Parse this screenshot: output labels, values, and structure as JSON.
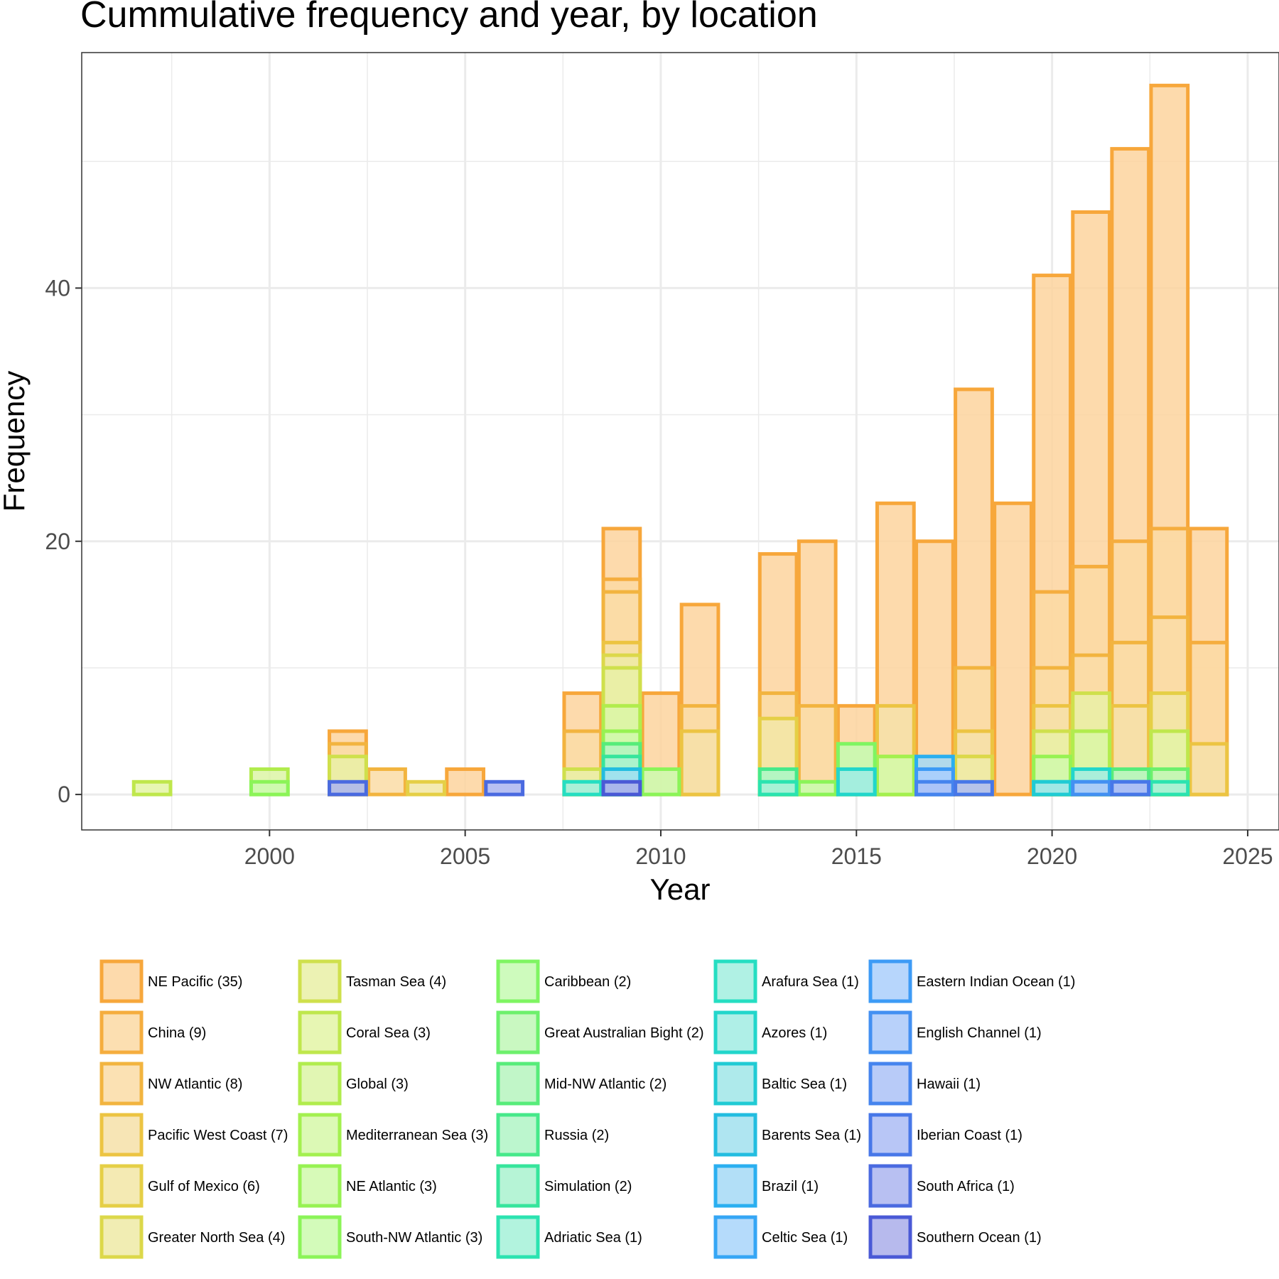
{
  "chart_data": {
    "type": "bar",
    "stacked": "overlapping",
    "title": "Cummulative frequency and year, by location",
    "xlabel": "Year",
    "ylabel": "Frequency",
    "xlim": [
      1995.2,
      2025.8
    ],
    "ylim": [
      -2.8,
      58.6
    ],
    "x_ticks": [
      2000,
      2005,
      2010,
      2015,
      2020,
      2025
    ],
    "y_ticks": [
      0,
      20,
      40
    ],
    "grid": true,
    "legend_position": "bottom",
    "series": [
      {
        "name": "NE Pacific (35)",
        "color": "#f7a73b",
        "fill": "#fdd49e",
        "points": [
          [
            2002,
            5
          ],
          [
            2005,
            2
          ],
          [
            2008,
            8
          ],
          [
            2009,
            21
          ],
          [
            2010,
            8
          ],
          [
            2011,
            15
          ],
          [
            2013,
            19
          ],
          [
            2014,
            20
          ],
          [
            2015,
            7
          ],
          [
            2016,
            23
          ],
          [
            2017,
            20
          ],
          [
            2018,
            32
          ],
          [
            2019,
            23
          ],
          [
            2020,
            41
          ],
          [
            2021,
            46
          ],
          [
            2022,
            51
          ],
          [
            2023,
            56
          ],
          [
            2024,
            21
          ]
        ]
      },
      {
        "name": "China (9)",
        "color": "#f5ad3e",
        "fill": "#fbd9a3",
        "points": [
          [
            2009,
            17
          ],
          [
            2020,
            16
          ],
          [
            2021,
            18
          ],
          [
            2022,
            20
          ],
          [
            2023,
            21
          ],
          [
            2024,
            12
          ]
        ]
      },
      {
        "name": "NW Atlantic (8)",
        "color": "#f2b43f",
        "fill": "#fadca6",
        "points": [
          [
            2002,
            4
          ],
          [
            2003,
            2
          ],
          [
            2008,
            5
          ],
          [
            2009,
            16
          ],
          [
            2011,
            7
          ],
          [
            2013,
            8
          ],
          [
            2014,
            7
          ],
          [
            2018,
            10
          ],
          [
            2020,
            10
          ],
          [
            2021,
            11
          ],
          [
            2022,
            12
          ],
          [
            2023,
            14
          ]
        ]
      },
      {
        "name": "Pacific West Coast (7)",
        "color": "#ecc442",
        "fill": "#f6e0a8",
        "points": [
          [
            2009,
            12
          ],
          [
            2011,
            5
          ],
          [
            2016,
            7
          ],
          [
            2018,
            5
          ],
          [
            2020,
            7
          ],
          [
            2022,
            7
          ],
          [
            2024,
            4
          ]
        ]
      },
      {
        "name": "Gulf of Mexico (6)",
        "color": "#e5cf46",
        "fill": "#f2e6a6",
        "points": [
          [
            2004,
            1
          ],
          [
            2013,
            6
          ],
          [
            2015,
            4
          ],
          [
            2018,
            3
          ],
          [
            2023,
            8
          ]
        ]
      },
      {
        "name": "Greater North Sea (4)",
        "color": "#dcd84a",
        "fill": "#eeeaa6",
        "points": [
          [
            2009,
            11
          ],
          [
            2014,
            1
          ],
          [
            2018,
            3
          ]
        ]
      },
      {
        "name": "Tasman Sea (4)",
        "color": "#cfe04c",
        "fill": "#e9f0a6",
        "points": [
          [
            2002,
            3
          ],
          [
            2008,
            2
          ],
          [
            2009,
            10
          ],
          [
            2016,
            3
          ],
          [
            2020,
            5
          ],
          [
            2021,
            8
          ]
        ]
      },
      {
        "name": "Coral Sea (3)",
        "color": "#bfe74c",
        "fill": "#e3f4a6",
        "points": [
          [
            1997,
            1
          ],
          [
            2009,
            7
          ],
          [
            2021,
            5
          ],
          [
            2023,
            5
          ]
        ]
      },
      {
        "name": "Global (3)",
        "color": "#b1ec4d",
        "fill": "#dcf5a6",
        "points": [
          [
            2000,
            2
          ],
          [
            2009,
            7
          ],
          [
            2021,
            5
          ]
        ]
      },
      {
        "name": "Mediterranean Sea (3)",
        "color": "#a3f04f",
        "fill": "#d6f8a8",
        "points": [
          [
            2008,
            1
          ],
          [
            2013,
            2
          ],
          [
            2016,
            3
          ]
        ]
      },
      {
        "name": "NE Atlantic (3)",
        "color": "#97f252",
        "fill": "#d0f9ab",
        "points": [
          [
            2009,
            5
          ],
          [
            2020,
            3
          ],
          [
            2022,
            2
          ]
        ]
      },
      {
        "name": "South-NW Atlantic (3)",
        "color": "#8bf458",
        "fill": "#cbfaae",
        "points": [
          [
            2000,
            1
          ],
          [
            2010,
            2
          ],
          [
            2014,
            1
          ]
        ]
      },
      {
        "name": "Caribbean (2)",
        "color": "#7ff562",
        "fill": "#c6fab2",
        "points": [
          [
            2013,
            2
          ],
          [
            2015,
            4
          ]
        ]
      },
      {
        "name": "Great Australian Bight (2)",
        "color": "#6df06c",
        "fill": "#bff7b6",
        "points": [
          [
            2009,
            4
          ],
          [
            2023,
            2
          ]
        ]
      },
      {
        "name": "Mid-NW Atlantic (2)",
        "color": "#57ec7a",
        "fill": "#b6f5be",
        "points": [
          [
            2009,
            4
          ],
          [
            2022,
            2
          ]
        ]
      },
      {
        "name": "Russia (2)",
        "color": "#46e98a",
        "fill": "#b0f4c6",
        "points": [
          [
            2013,
            2
          ],
          [
            2015,
            2
          ]
        ]
      },
      {
        "name": "Simulation (2)",
        "color": "#36e59c",
        "fill": "#a9f2cf",
        "points": [
          [
            2009,
            3
          ],
          [
            2022,
            1
          ]
        ]
      },
      {
        "name": "Adriatic Sea (1)",
        "color": "#2be3b0",
        "fill": "#a4f1d8",
        "points": [
          [
            2013,
            1
          ],
          [
            2023,
            1
          ]
        ]
      },
      {
        "name": "Arafura Sea (1)",
        "color": "#25dec2",
        "fill": "#a2efdf",
        "points": [
          [
            2008,
            1
          ],
          [
            2020,
            1
          ]
        ]
      },
      {
        "name": "Azores (1)",
        "color": "#22d6cb",
        "fill": "#a1ece3",
        "points": [
          [
            2015,
            2
          ],
          [
            2021,
            2
          ]
        ]
      },
      {
        "name": "Baltic Sea (1)",
        "color": "#20cbd4",
        "fill": "#a0e6e8",
        "points": [
          [
            2009,
            2
          ],
          [
            2020,
            1
          ]
        ]
      },
      {
        "name": "Barents Sea (1)",
        "color": "#22bde0",
        "fill": "#a1e0ee",
        "points": [
          [
            2009,
            2
          ],
          [
            2021,
            1
          ]
        ]
      },
      {
        "name": "Brazil (1)",
        "color": "#2aaff0",
        "fill": "#a4d9f6",
        "points": [
          [
            2017,
            3
          ]
        ]
      },
      {
        "name": "Celtic Sea (1)",
        "color": "#35a6f5",
        "fill": "#a8d5fa",
        "points": [
          [
            2017,
            2
          ]
        ]
      },
      {
        "name": "Eastern Indian Ocean (1)",
        "color": "#3d9bf6",
        "fill": "#aacffb",
        "points": [
          [
            2017,
            2
          ],
          [
            2022,
            1
          ]
        ]
      },
      {
        "name": "English Channel (1)",
        "color": "#4390f2",
        "fill": "#abc9f9",
        "points": [
          [
            2021,
            1
          ]
        ]
      },
      {
        "name": "Hawaii (1)",
        "color": "#4584ee",
        "fill": "#abc2f7",
        "points": [
          [
            2017,
            1
          ]
        ]
      },
      {
        "name": "Iberian Coast (1)",
        "color": "#4777e8",
        "fill": "#abbcf4",
        "points": [
          [
            2018,
            1
          ],
          [
            2022,
            1
          ]
        ]
      },
      {
        "name": "South Africa (1)",
        "color": "#4a6ae0",
        "fill": "#acb5f0",
        "points": [
          [
            2006,
            1
          ],
          [
            2002,
            1
          ]
        ]
      },
      {
        "name": "Southern Ocean (1)",
        "color": "#4a59d6",
        "fill": "#aaaeea",
        "points": [
          [
            2009,
            1
          ]
        ]
      }
    ]
  }
}
